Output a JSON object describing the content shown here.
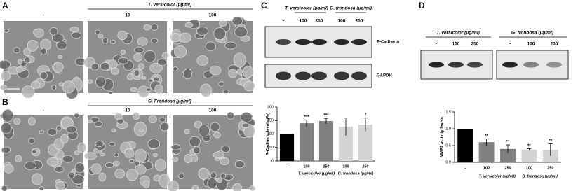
{
  "panel_a": {
    "letter": "A",
    "control": "-",
    "header": "T. Versicolor (μg/ml)",
    "doses": [
      "10",
      "100"
    ]
  },
  "panel_b": {
    "letter": "B",
    "control": "-",
    "header": "G. Frondosa (μg/ml)",
    "doses": [
      "10",
      "100"
    ]
  },
  "panel_c": {
    "letter": "C",
    "headers": [
      "T. versicolor (μg/ml)",
      "G. frondosa (μg/ml)"
    ],
    "lanes": [
      "-",
      "100",
      "250",
      "100",
      "250"
    ],
    "bands": [
      "E-Cadherin",
      "GAPDH"
    ]
  },
  "panel_d": {
    "letter": "D",
    "headers": [
      "T. versicolor (μg/ml)",
      "G. frondosa (μg/ml)"
    ],
    "lanes": [
      "-",
      "100",
      "250",
      "-",
      "100",
      "250"
    ]
  },
  "chart_data": [
    {
      "type": "bar",
      "ylabel": "E-Cadherin levels (%)",
      "categories": [
        "-",
        "100",
        "250",
        "100",
        "250"
      ],
      "values": [
        100,
        140,
        148,
        127,
        135
      ],
      "errors": [
        null,
        12,
        10,
        33,
        25
      ],
      "colors": [
        "#000000",
        "#808080",
        "#808080",
        "#d4d4d4",
        "#d4d4d4"
      ],
      "significance": [
        null,
        "***",
        "***",
        null,
        "*"
      ],
      "group_labels": [
        "T. versicolor (μg/ml)",
        "G. frondosa (μg/ml)"
      ],
      "ylim": [
        0,
        200
      ],
      "yticks": [
        0,
        50,
        100,
        150,
        200
      ]
    },
    {
      "type": "bar",
      "ylabel": "MMP2 activity levels",
      "categories": [
        "-",
        "100",
        "250",
        "100",
        "250"
      ],
      "values": [
        1.0,
        0.6,
        0.4,
        0.38,
        0.37
      ],
      "errors": [
        null,
        0.1,
        0.12,
        0.03,
        0.18
      ],
      "colors": [
        "#000000",
        "#808080",
        "#808080",
        "#d4d4d4",
        "#d4d4d4"
      ],
      "significance": [
        null,
        "**",
        "**",
        "**",
        "**"
      ],
      "group_labels": [
        "T. versicolor (μg/ml)",
        "G. frondosa (μg/ml)"
      ],
      "ylim": [
        0,
        1.5
      ],
      "yticks": [
        {
          "value": 0,
          "label": "0.0"
        },
        {
          "value": 0.5,
          "label": "0.5"
        },
        {
          "value": 1,
          "label": "1.0"
        },
        {
          "value": 1.5,
          "label": "1.5"
        }
      ]
    }
  ]
}
